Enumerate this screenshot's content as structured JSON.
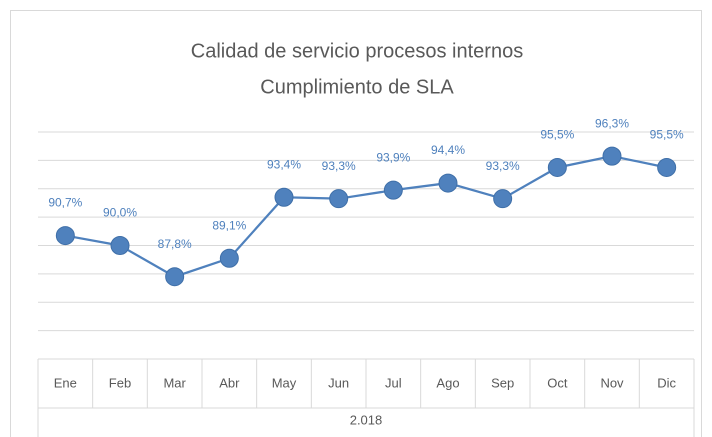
{
  "chart_data": {
    "type": "line",
    "title": "Calidad de servicio procesos internos",
    "subtitle": "Cumplimiento de SLA",
    "categories": [
      "Ene",
      "Feb",
      "Mar",
      "Abr",
      "May",
      "Jun",
      "Jul",
      "Ago",
      "Sep",
      "Oct",
      "Nov",
      "Dic"
    ],
    "x_group_label": "2.018",
    "series": [
      {
        "color": "#4f81bd",
        "values": [
          90.7,
          90.0,
          87.8,
          89.1,
          93.4,
          93.3,
          93.9,
          94.4,
          93.3,
          95.5,
          96.3,
          95.5
        ],
        "value_labels": [
          "90,7%",
          "90,0%",
          "87,8%",
          "89,1%",
          "93,4%",
          "93,3%",
          "93,9%",
          "94,4%",
          "93,3%",
          "95,5%",
          "96,3%",
          "95,5%"
        ]
      }
    ],
    "ylim": [
      82,
      98
    ],
    "yticks": [
      82,
      84,
      86,
      88,
      90,
      92,
      94,
      96,
      98
    ],
    "grid": true
  }
}
